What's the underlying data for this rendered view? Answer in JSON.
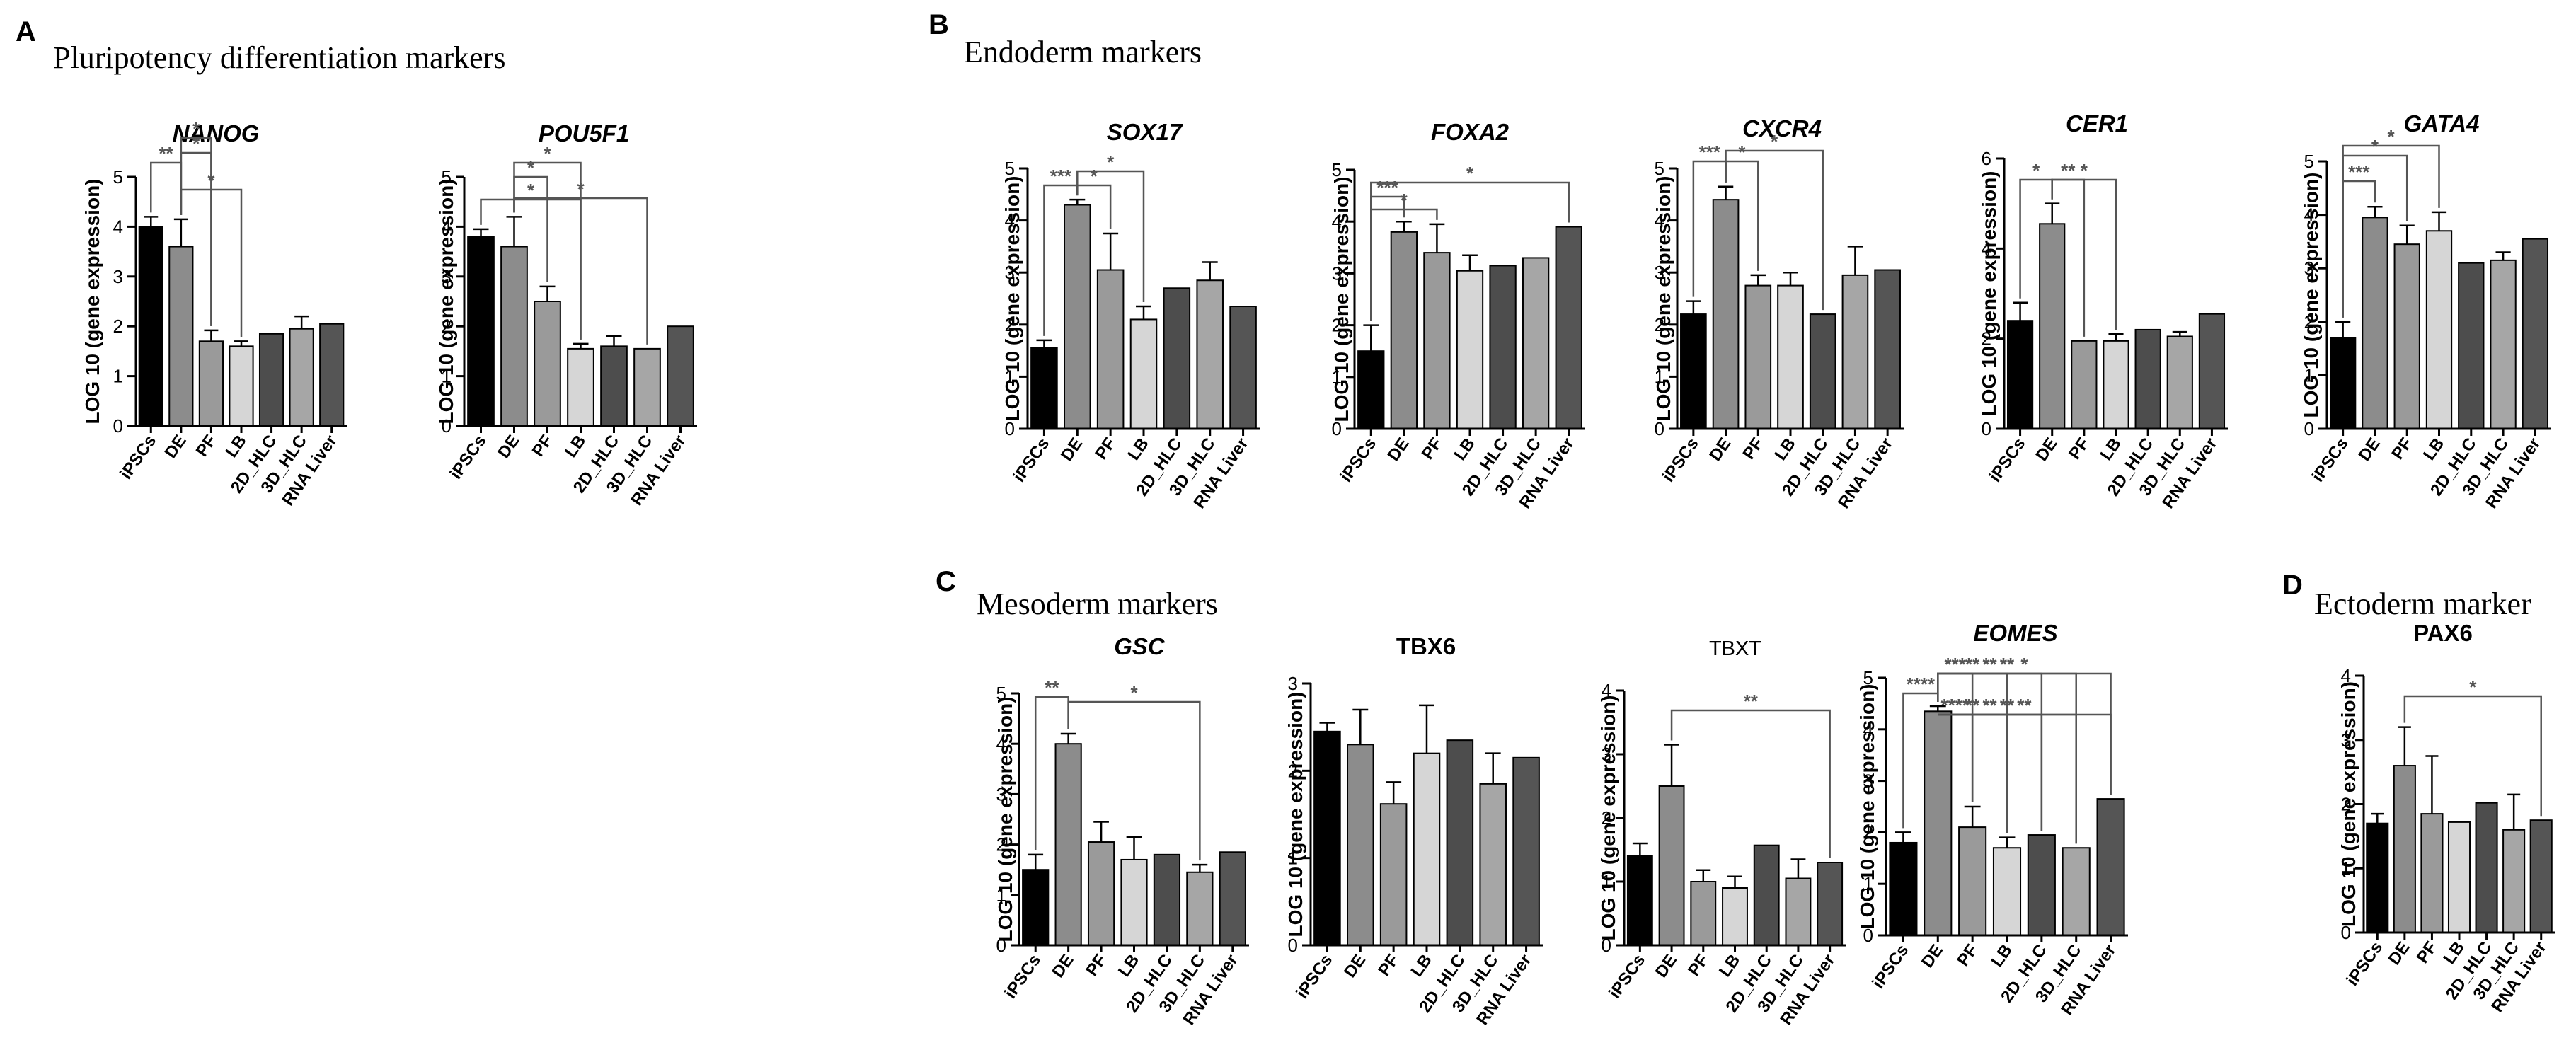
{
  "sections": {
    "A": {
      "letter": "A",
      "title": "Pluripotency differentiation markers"
    },
    "B": {
      "letter": "B",
      "title": "Endoderm markers"
    },
    "C": {
      "letter": "C",
      "title": "Mesoderm markers"
    },
    "D": {
      "letter": "D",
      "title": "Ectoderm marker"
    }
  },
  "chart_data": [
    {
      "id": "nanog",
      "type": "bar",
      "title": "NANOG",
      "title_style": "bold-italic",
      "ylabel": "LOG 10 (gene expression)",
      "ylim": [
        0,
        5
      ],
      "yticks": [
        0,
        1,
        2,
        3,
        4,
        5
      ],
      "categories": [
        "iPSCs",
        "DE",
        "PF",
        "LB",
        "2D_HLC",
        "3D_HLC",
        "RNA Liver"
      ],
      "values": [
        4.0,
        3.6,
        1.7,
        1.6,
        1.85,
        1.95,
        2.05
      ],
      "errors": [
        0.2,
        0.55,
        0.22,
        0.1,
        0,
        0.25,
        0
      ],
      "significance": [
        {
          "from": 0,
          "to": 1,
          "label": "**"
        },
        {
          "from": 1,
          "to": 2,
          "label": "*"
        },
        {
          "from": 1,
          "to": 3,
          "label": "*"
        },
        {
          "from": 1,
          "to": 2,
          "label": "*"
        }
      ]
    },
    {
      "id": "pou5f1",
      "type": "bar",
      "title": "POU5F1",
      "title_style": "bold-italic",
      "ylabel": "LOG 10 (gene expression)",
      "ylim": [
        0,
        5
      ],
      "yticks": [
        0,
        1,
        2,
        3,
        4,
        5
      ],
      "categories": [
        "iPSCs",
        "DE",
        "PF",
        "LB",
        "2D_HLC",
        "3D_HLC",
        "RNA Liver"
      ],
      "values": [
        3.8,
        3.6,
        2.5,
        1.55,
        1.6,
        1.55,
        2.0
      ],
      "errors": [
        0.15,
        0.6,
        0.3,
        0.1,
        0.2,
        0,
        0
      ],
      "significance": [
        {
          "from": 0,
          "to": 3,
          "label": "*"
        },
        {
          "from": 1,
          "to": 2,
          "label": "*"
        },
        {
          "from": 1,
          "to": 3,
          "label": "*"
        },
        {
          "from": 1,
          "to": 5,
          "label": "*"
        }
      ]
    },
    {
      "id": "sox17",
      "type": "bar",
      "title": "SOX17",
      "title_style": "bold-italic",
      "ylabel": "LOG 10 (gene expression)",
      "ylim": [
        0,
        5
      ],
      "yticks": [
        0,
        1,
        2,
        3,
        4,
        5
      ],
      "categories": [
        "iPSCs",
        "DE",
        "PF",
        "LB",
        "2D_HLC",
        "3D_HLC",
        "RNA Liver"
      ],
      "values": [
        1.55,
        4.3,
        3.05,
        2.1,
        2.7,
        2.85,
        2.35
      ],
      "errors": [
        0.15,
        0.1,
        0.7,
        0.25,
        0,
        0.35,
        0
      ],
      "significance": [
        {
          "from": 0,
          "to": 1,
          "label": "***"
        },
        {
          "from": 1,
          "to": 3,
          "label": "*"
        },
        {
          "from": 1,
          "to": 2,
          "label": "*"
        }
      ]
    },
    {
      "id": "foxa2",
      "type": "bar",
      "title": "FOXA2",
      "title_style": "bold-italic",
      "ylabel": "LOG 10 (gene expression)",
      "ylim": [
        0,
        5
      ],
      "yticks": [
        0,
        1,
        2,
        3,
        4,
        5
      ],
      "categories": [
        "iPSCs",
        "DE",
        "PF",
        "LB",
        "2D_HLC",
        "3D_HLC",
        "RNA Liver"
      ],
      "values": [
        1.5,
        3.8,
        3.4,
        3.05,
        3.15,
        3.3,
        3.9
      ],
      "errors": [
        0.5,
        0.2,
        0.55,
        0.3,
        0,
        0,
        0
      ],
      "significance": [
        {
          "from": 0,
          "to": 1,
          "label": "***"
        },
        {
          "from": 0,
          "to": 2,
          "label": "*"
        },
        {
          "from": 0,
          "to": 6,
          "label": "*"
        }
      ]
    },
    {
      "id": "cxcr4",
      "type": "bar",
      "title": "CXCR4",
      "title_style": "bold-italic",
      "ylabel": "LOG 10 (gene expression)",
      "ylim": [
        0,
        5
      ],
      "yticks": [
        0,
        1,
        2,
        3,
        4,
        5
      ],
      "categories": [
        "iPSCs",
        "DE",
        "PF",
        "LB",
        "2D_HLC",
        "3D_HLC",
        "RNA Liver"
      ],
      "values": [
        2.2,
        4.4,
        2.75,
        2.75,
        2.2,
        2.95,
        3.05
      ],
      "errors": [
        0.25,
        0.25,
        0.2,
        0.25,
        0,
        0.55,
        0
      ],
      "significance": [
        {
          "from": 0,
          "to": 1,
          "label": "***"
        },
        {
          "from": 1,
          "to": 2,
          "label": "*"
        },
        {
          "from": 1,
          "to": 4,
          "label": "*"
        }
      ]
    },
    {
      "id": "cer1",
      "type": "bar",
      "title": "CER1",
      "title_style": "bold-italic",
      "ylabel": "LOG 10 (gene expression)",
      "ylim": [
        0,
        6
      ],
      "yticks": [
        0,
        2,
        4,
        6
      ],
      "categories": [
        "iPSCs",
        "DE",
        "PF",
        "LB",
        "2D_HLC",
        "3D_HLC",
        "RNA Liver"
      ],
      "values": [
        2.4,
        4.55,
        1.95,
        1.95,
        2.2,
        2.05,
        2.55
      ],
      "errors": [
        0.4,
        0.45,
        0,
        0.15,
        0,
        0.1,
        0
      ],
      "significance": [
        {
          "from": 0,
          "to": 1,
          "label": "*"
        },
        {
          "from": 1,
          "to": 2,
          "label": "**"
        },
        {
          "from": 1,
          "to": 3,
          "label": "*"
        }
      ]
    },
    {
      "id": "gata4",
      "type": "bar",
      "title": "GATA4",
      "title_style": "bold-italic",
      "ylabel": "LOG 10 (gene expression)",
      "ylim": [
        0,
        5
      ],
      "yticks": [
        0,
        1,
        2,
        3,
        4,
        5
      ],
      "categories": [
        "iPSCs",
        "DE",
        "PF",
        "LB",
        "2D_HLC",
        "3D_HLC",
        "RNA Liver"
      ],
      "values": [
        1.7,
        3.95,
        3.45,
        3.7,
        3.1,
        3.15,
        3.55
      ],
      "errors": [
        0.3,
        0.2,
        0.35,
        0.35,
        0,
        0.15,
        0
      ],
      "significance": [
        {
          "from": 0,
          "to": 1,
          "label": "***"
        },
        {
          "from": 0,
          "to": 2,
          "label": "*"
        },
        {
          "from": 0,
          "to": 3,
          "label": "*"
        }
      ]
    },
    {
      "id": "gsc",
      "type": "bar",
      "title": "GSC",
      "title_style": "bold-italic",
      "ylabel": "LOG 10 (gene expression)",
      "ylim": [
        0,
        5
      ],
      "yticks": [
        0,
        1,
        2,
        3,
        4,
        5
      ],
      "categories": [
        "iPSCs",
        "DE",
        "PF",
        "LB",
        "2D_HLC",
        "3D_HLC",
        "RNA Liver"
      ],
      "values": [
        1.5,
        4.0,
        2.05,
        1.7,
        1.8,
        1.45,
        1.85
      ],
      "errors": [
        0.3,
        0.2,
        0.4,
        0.45,
        0,
        0.15,
        0
      ],
      "significance": [
        {
          "from": 0,
          "to": 1,
          "label": "**"
        },
        {
          "from": 1,
          "to": 5,
          "label": "*"
        }
      ]
    },
    {
      "id": "tbx6",
      "type": "bar",
      "title": "TBX6",
      "title_style": "bold",
      "ylabel": "LOG 10 (gene expression)",
      "ylim": [
        0,
        3
      ],
      "yticks": [
        0,
        1,
        2,
        3
      ],
      "categories": [
        "iPSCs",
        "DE",
        "PF",
        "LB",
        "2D_HLC",
        "3D_HLC",
        "RNA Liver"
      ],
      "values": [
        2.45,
        2.3,
        1.62,
        2.2,
        2.35,
        1.85,
        2.15
      ],
      "errors": [
        0.1,
        0.4,
        0.25,
        0.55,
        0,
        0.35,
        0
      ],
      "significance": []
    },
    {
      "id": "tbxt",
      "type": "bar",
      "title": "TBXT",
      "title_style": "plain",
      "ylabel": "LOG 10 (gene expression)",
      "ylim": [
        0,
        4
      ],
      "yticks": [
        0,
        1,
        2,
        3,
        4
      ],
      "categories": [
        "iPSCs",
        "DE",
        "PF",
        "LB",
        "2D_HLC",
        "3D_HLC",
        "RNA Liver"
      ],
      "values": [
        1.4,
        2.5,
        1.0,
        0.9,
        1.57,
        1.05,
        1.3
      ],
      "errors": [
        0.2,
        0.65,
        0.18,
        0.18,
        0,
        0.3,
        0
      ],
      "significance": [
        {
          "from": 1,
          "to": 6,
          "label": "**"
        }
      ]
    },
    {
      "id": "eomes",
      "type": "bar",
      "title": "EOMES",
      "title_style": "bold-italic",
      "ylabel": "LOG 10 (gene expression)",
      "ylim": [
        0,
        5
      ],
      "yticks": [
        0,
        1,
        2,
        3,
        4,
        5
      ],
      "categories": [
        "iPSCs",
        "DE",
        "PF",
        "LB",
        "2D_HLC",
        "3D_HLC",
        "RNA Liver"
      ],
      "values": [
        1.8,
        4.35,
        2.1,
        1.7,
        1.95,
        1.7,
        2.65
      ],
      "errors": [
        0.2,
        0.1,
        0.4,
        0.2,
        0,
        0,
        0
      ],
      "significance": [
        {
          "from": 0,
          "to": 1,
          "label": "****"
        },
        {
          "from": 1,
          "to": 2,
          "label": "****"
        },
        {
          "from": 1,
          "to": 3,
          "label": "**"
        },
        {
          "from": 1,
          "to": 4,
          "label": "**"
        },
        {
          "from": 1,
          "to": 5,
          "label": "**"
        },
        {
          "from": 1,
          "to": 6,
          "label": "**"
        },
        {
          "from": 1,
          "to": 2,
          "label": "***"
        },
        {
          "from": 1,
          "to": 3,
          "label": "**"
        },
        {
          "from": 1,
          "to": 4,
          "label": "**"
        },
        {
          "from": 1,
          "to": 5,
          "label": "**"
        },
        {
          "from": 1,
          "to": 6,
          "label": "*"
        }
      ]
    },
    {
      "id": "pax6",
      "type": "bar",
      "title": "PAX6",
      "title_style": "bold",
      "ylabel": "LOG 10 (gene expression)",
      "ylim": [
        0,
        4
      ],
      "yticks": [
        0,
        1,
        2,
        3,
        4
      ],
      "categories": [
        "iPSCs",
        "DE",
        "PF",
        "LB",
        "2D_HLC",
        "3D_HLC",
        "RNA Liver"
      ],
      "values": [
        1.7,
        2.6,
        1.85,
        1.72,
        2.02,
        1.6,
        1.75
      ],
      "errors": [
        0.15,
        0.6,
        0.9,
        0,
        0,
        0.55,
        0
      ],
      "significance": [
        {
          "from": 1,
          "to": 6,
          "label": "*"
        }
      ]
    }
  ]
}
